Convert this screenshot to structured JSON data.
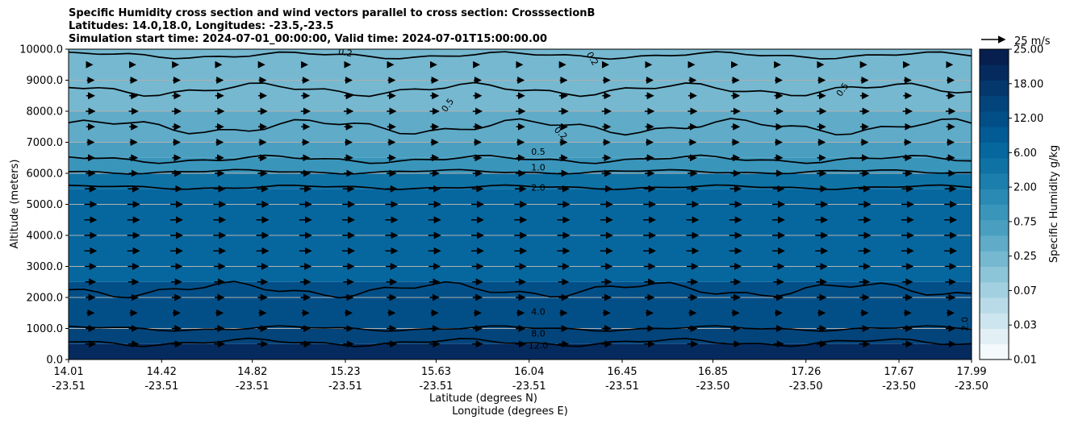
{
  "chart_data": {
    "type": "heatmap",
    "title_lines": [
      "Specific Humidity cross section and wind vectors parallel to cross section: CrosssectionB",
      "Latitudes: 14.0,18.0, Longitudes: -23.5,-23.5",
      "Simulation start time: 2024-07-01_00:00:00, Valid time: 2024-07-01T15:00:00.00"
    ],
    "ylabel": "Altitude (meters)",
    "xlabel_lat": "Latitude (degrees N)",
    "xlabel_lon": "Longitude (degrees E)",
    "ylim": [
      0,
      10000
    ],
    "y_ticks": [
      "0.0",
      "1000.0",
      "2000.0",
      "3000.0",
      "4000.0",
      "5000.0",
      "6000.0",
      "7000.0",
      "8000.0",
      "9000.0",
      "10000.0"
    ],
    "x_ticks_lat": [
      "14.01",
      "14.42",
      "14.82",
      "15.23",
      "15.63",
      "16.04",
      "16.45",
      "16.85",
      "17.26",
      "17.67",
      "17.99"
    ],
    "x_ticks_lon": [
      "-23.51",
      "-23.51",
      "-23.51",
      "-23.51",
      "-23.51",
      "-23.51",
      "-23.51",
      "-23.50",
      "-23.50",
      "-23.50",
      "-23.50"
    ],
    "grid": "horizontal",
    "colorbar": {
      "label": "Specific Humidity g/kg",
      "tick_labels": [
        "0.01",
        "0.03",
        "0.07",
        "0.25",
        "0.75",
        "2.00",
        "6.00",
        "12.00",
        "18.00",
        "25.00"
      ],
      "colors": [
        "#f4fafc",
        "#e2f0f5",
        "#cde5ee",
        "#b8dbe7",
        "#a2d0e0",
        "#8cc4d8",
        "#75b8d0",
        "#5fabc8",
        "#4a9fc0",
        "#3a95bb",
        "#2a8ab4",
        "#1b7eac",
        "#0f72a5",
        "#06679f",
        "#025b95",
        "#024f88",
        "#03447b",
        "#04386d",
        "#052b5e",
        "#061f4f"
      ]
    },
    "humidity_layers": [
      {
        "altitude_top": 10000,
        "value": 0.15
      },
      {
        "altitude_top": 9000,
        "value": 0.2
      },
      {
        "altitude_top": 8000,
        "value": 0.3
      },
      {
        "altitude_top": 7000,
        "value": 0.4
      },
      {
        "altitude_top": 6500,
        "value": 0.7
      },
      {
        "altitude_top": 6000,
        "value": 1.5
      },
      {
        "altitude_top": 5500,
        "value": 2.5
      },
      {
        "altitude_top": 2500,
        "value": 4.0
      },
      {
        "altitude_top": 1000,
        "value": 8.0
      },
      {
        "altitude_top": 500,
        "value": 12.0
      }
    ],
    "contour_labels": [
      {
        "text": "0.2",
        "lat": 15.23,
        "alt": 9900,
        "angle": 10
      },
      {
        "text": "0.2",
        "lat": 16.32,
        "alt": 9700,
        "angle": 60
      },
      {
        "text": "0.5",
        "lat": 15.68,
        "alt": 8200,
        "angle": -55
      },
      {
        "text": "0.2",
        "lat": 16.18,
        "alt": 7300,
        "angle": 45
      },
      {
        "text": "0.5",
        "lat": 17.42,
        "alt": 8700,
        "angle": -55
      },
      {
        "text": "0.5",
        "lat": 16.08,
        "alt": 6700,
        "angle": 0
      },
      {
        "text": "1.0",
        "lat": 16.08,
        "alt": 6200,
        "angle": 0
      },
      {
        "text": "2.0",
        "lat": 16.08,
        "alt": 5550,
        "angle": 0
      },
      {
        "text": "4.0",
        "lat": 16.08,
        "alt": 1550,
        "angle": 0
      },
      {
        "text": "8.0",
        "lat": 16.08,
        "alt": 850,
        "angle": 0
      },
      {
        "text": "12.0",
        "lat": 16.08,
        "alt": 450,
        "angle": 0
      },
      {
        "text": "2.0",
        "lat": 17.96,
        "alt": 1150,
        "angle": -90
      }
    ],
    "wind": {
      "reference_label": "25 m/s",
      "reference_speed": 25,
      "rows": [
        {
          "alt": 9500,
          "speed": 4
        },
        {
          "alt": 9000,
          "speed": 7
        },
        {
          "alt": 8500,
          "speed": 8
        },
        {
          "alt": 8000,
          "speed": 9
        },
        {
          "alt": 7500,
          "speed": 8
        },
        {
          "alt": 7000,
          "speed": 7
        },
        {
          "alt": 6500,
          "speed": 8
        },
        {
          "alt": 6000,
          "speed": 9
        },
        {
          "alt": 5500,
          "speed": 11
        },
        {
          "alt": 5000,
          "speed": 12
        },
        {
          "alt": 4500,
          "speed": 12
        },
        {
          "alt": 4000,
          "speed": 12
        },
        {
          "alt": 3500,
          "speed": 12
        },
        {
          "alt": 3000,
          "speed": 11
        },
        {
          "alt": 2500,
          "speed": 10
        },
        {
          "alt": 2000,
          "speed": 9
        },
        {
          "alt": 1500,
          "speed": 7
        },
        {
          "alt": 1000,
          "speed": 9
        },
        {
          "alt": 500,
          "speed": 10
        }
      ]
    }
  }
}
